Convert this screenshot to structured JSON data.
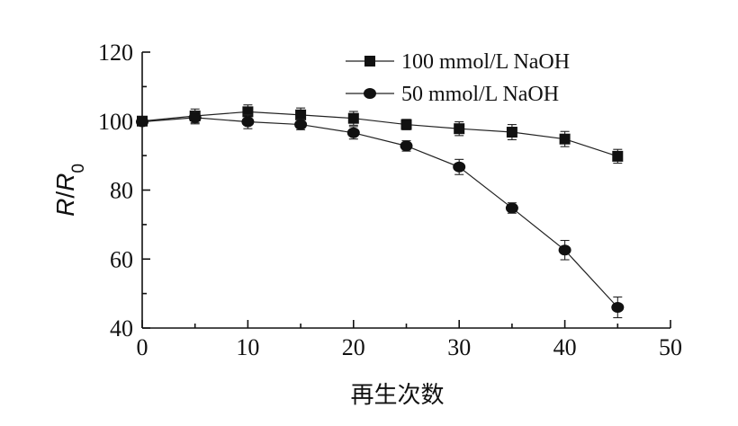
{
  "chart_data": {
    "type": "line",
    "xlabel": "再生次数",
    "ylabel": {
      "parts": [
        "R",
        "/",
        "R",
        "0"
      ]
    },
    "xlim": [
      0,
      50
    ],
    "ylim": [
      40,
      120
    ],
    "xticks": [
      0,
      10,
      20,
      30,
      40,
      50
    ],
    "yticks": [
      40,
      60,
      80,
      100,
      120
    ],
    "grid": false,
    "legend_position": "top-right",
    "series": [
      {
        "name": "100 mmol/L NaOH",
        "marker": "square",
        "color": "#111111",
        "x": [
          0,
          5,
          10,
          15,
          20,
          25,
          30,
          35,
          40,
          45
        ],
        "y": [
          100,
          101.5,
          102.7,
          101.8,
          100.8,
          99,
          97.8,
          96.8,
          94.8,
          89.8
        ],
        "error": [
          1.2,
          2.0,
          2.0,
          2.0,
          2.0,
          1.5,
          2.0,
          2.2,
          2.2,
          2.0
        ]
      },
      {
        "name": "50 mmol/L NaOH",
        "marker": "circle",
        "color": "#111111",
        "x": [
          0,
          5,
          10,
          15,
          20,
          25,
          30,
          35,
          40,
          45
        ],
        "y": [
          99.8,
          101,
          99.8,
          99,
          96.6,
          92.8,
          86.7,
          74.8,
          62.6,
          46
        ],
        "error": [
          1.0,
          1.8,
          2.0,
          1.5,
          1.8,
          1.5,
          2.2,
          1.5,
          2.8,
          3.0
        ]
      }
    ]
  }
}
